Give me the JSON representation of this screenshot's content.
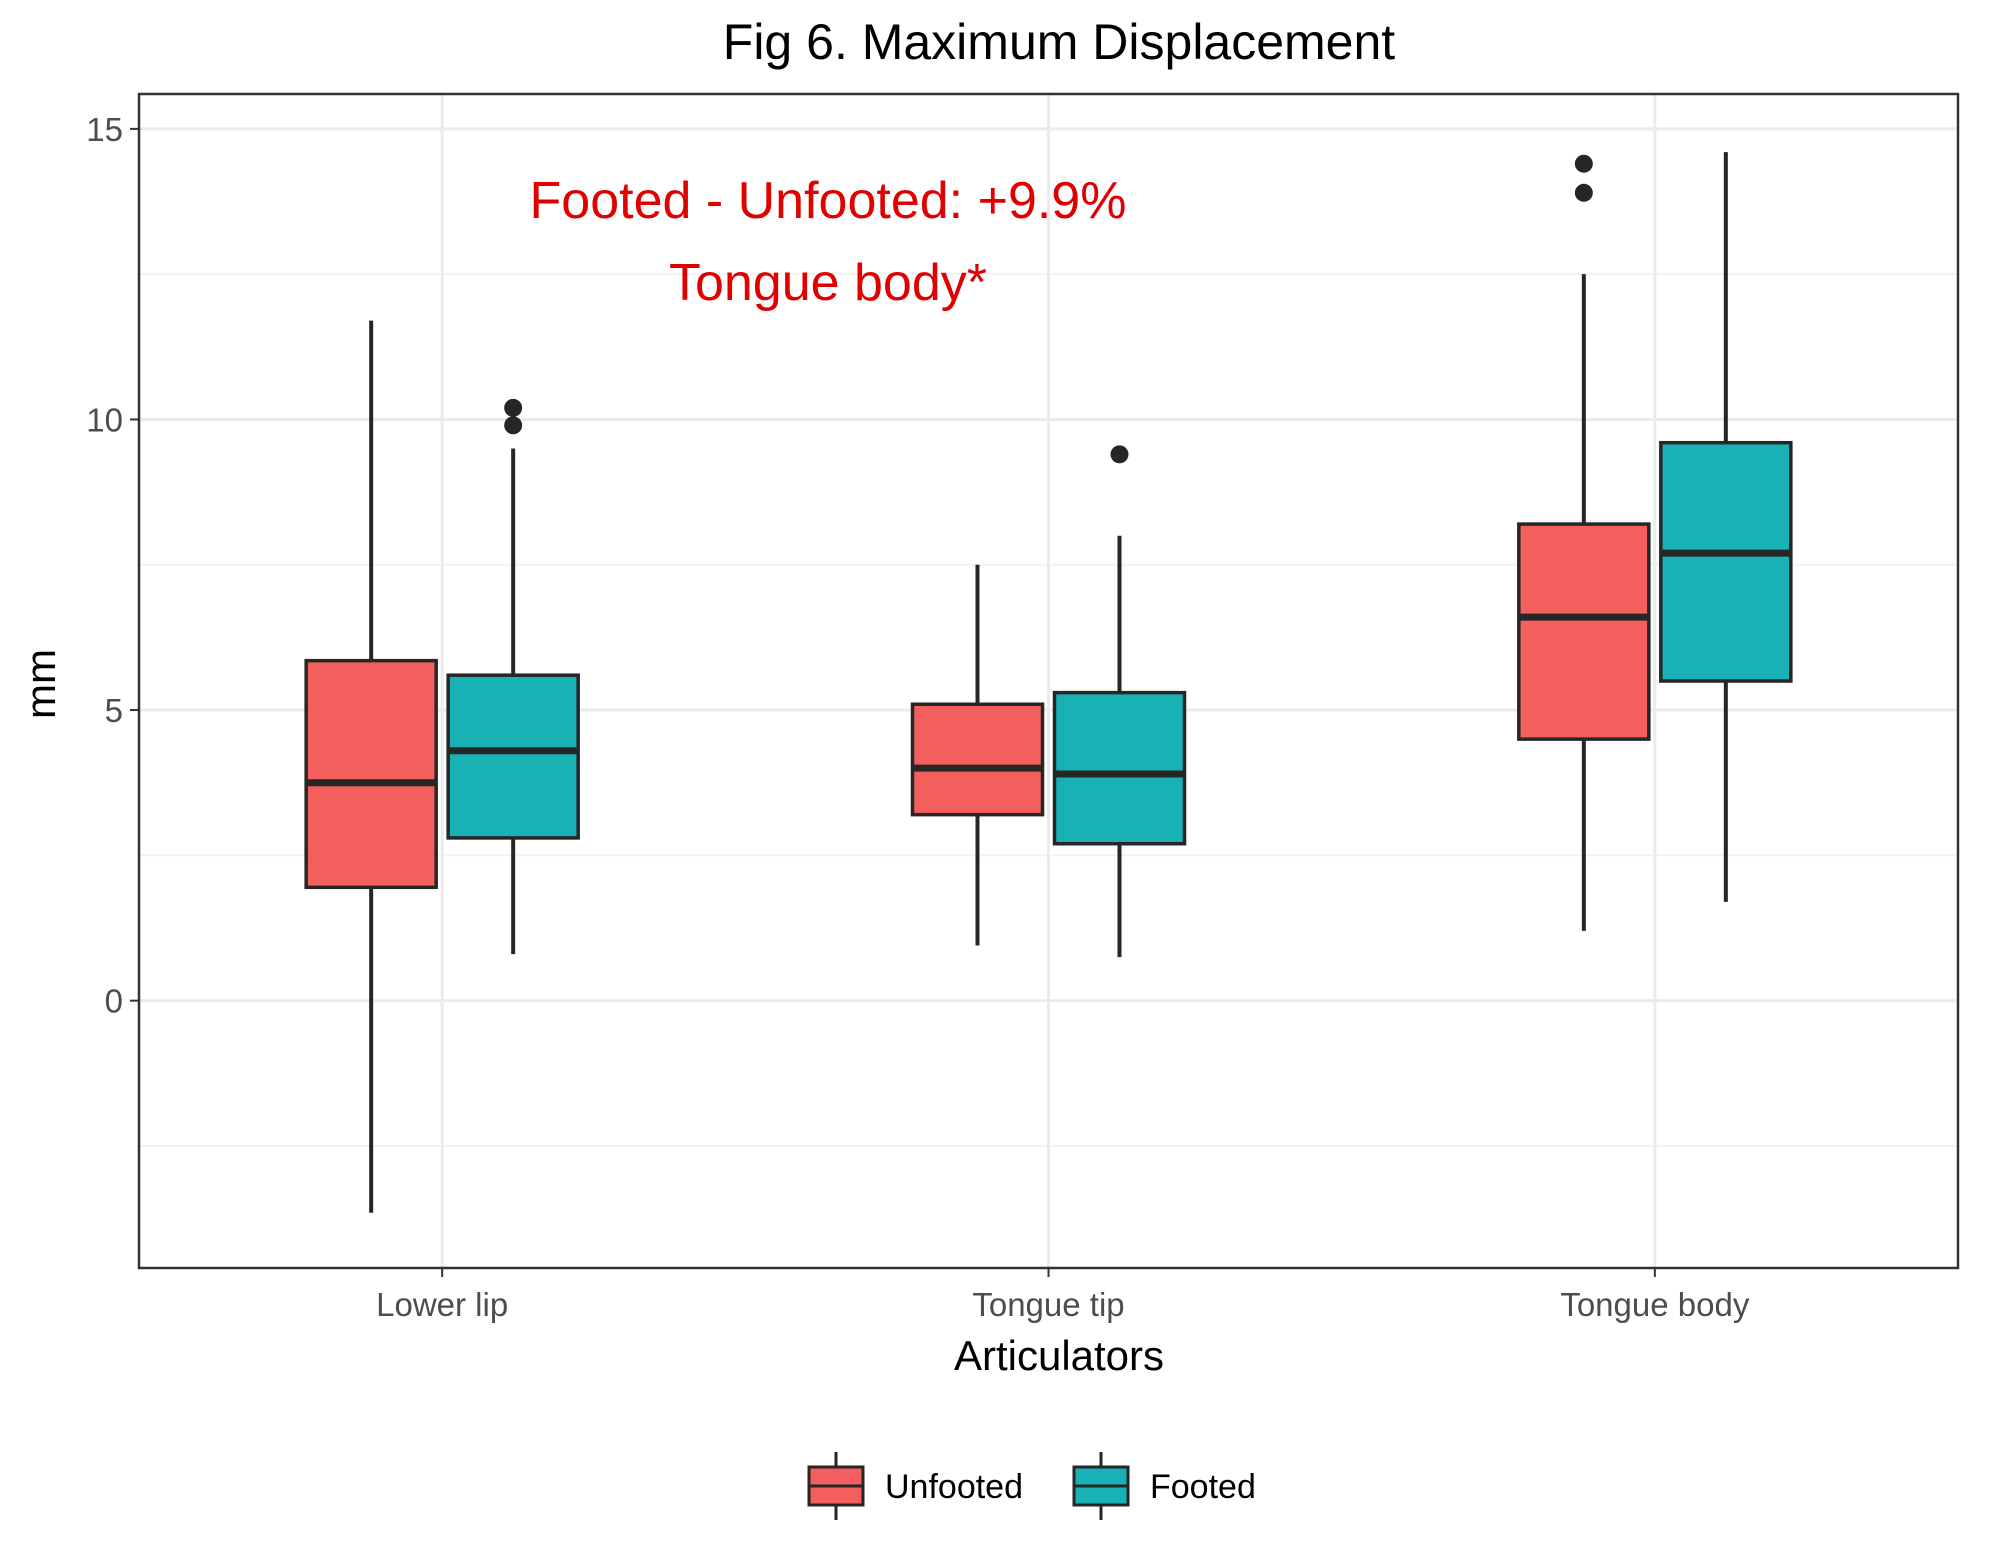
{
  "chart_data": {
    "type": "box",
    "title": "Fig 6. Maximum Displacement",
    "xlabel": "Articulators",
    "ylabel": "mm",
    "categories": [
      "Lower lip",
      "Tongue tip",
      "Tongue body"
    ],
    "ylim": [
      -4.6,
      15.6
    ],
    "yticks": [
      0,
      5,
      10,
      15
    ],
    "grid": true,
    "legend_position": "bottom",
    "series": [
      {
        "name": "Unfooted",
        "color": "#F35F5C",
        "boxes": [
          {
            "min": -3.65,
            "q1": 1.95,
            "median": 3.75,
            "q3": 5.85,
            "max": 11.7,
            "outliers": []
          },
          {
            "min": 0.95,
            "q1": 3.2,
            "median": 4.0,
            "q3": 5.1,
            "max": 7.5,
            "outliers": []
          },
          {
            "min": 1.2,
            "q1": 4.5,
            "median": 6.6,
            "q3": 8.2,
            "max": 12.5,
            "outliers": [
              13.9,
              14.4
            ]
          }
        ]
      },
      {
        "name": "Footed",
        "color": "#18B2B6",
        "boxes": [
          {
            "min": 0.8,
            "q1": 2.8,
            "median": 4.3,
            "q3": 5.6,
            "max": 9.5,
            "outliers": [
              9.9,
              10.2
            ]
          },
          {
            "min": 0.75,
            "q1": 2.7,
            "median": 3.9,
            "q3": 5.3,
            "max": 8.0,
            "outliers": [
              9.4
            ]
          },
          {
            "min": 1.7,
            "q1": 5.5,
            "median": 7.7,
            "q3": 9.6,
            "max": 14.6,
            "outliers": []
          }
        ]
      }
    ],
    "annotations": [
      {
        "text": "Footed - Unfooted: +9.9%",
        "color": "#E00000"
      },
      {
        "text": "Tongue body*",
        "color": "#E00000"
      }
    ]
  }
}
